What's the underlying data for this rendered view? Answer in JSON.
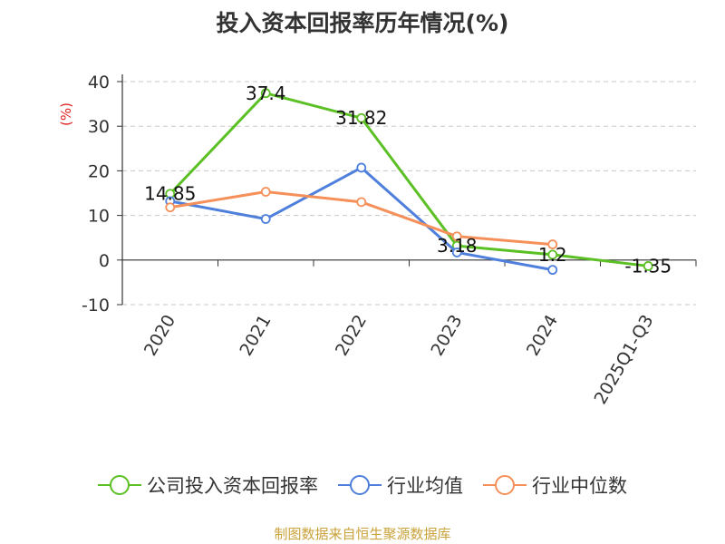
{
  "chart_data": {
    "type": "line",
    "title": "投入资本回报率历年情况(%)",
    "ylabel": "(%)",
    "xlabel": "",
    "categories": [
      "2020",
      "2021",
      "2022",
      "2023",
      "2024",
      "2025Q1-Q3"
    ],
    "ylim": [
      -10,
      40
    ],
    "yticks": [
      -10,
      0,
      10,
      20,
      30,
      40
    ],
    "grid": true,
    "legend_position": "bottom",
    "series": [
      {
        "name": "公司投入资本回报率",
        "color": "#5bc024",
        "values": [
          14.85,
          37.4,
          31.82,
          3.18,
          1.2,
          -1.35
        ],
        "labels": [
          "14.85",
          "37.4",
          "31.82",
          "3.18",
          "1.2",
          "-1.35"
        ]
      },
      {
        "name": "行业均值",
        "color": "#4e7fdc",
        "values": [
          13.2,
          9.2,
          20.7,
          1.7,
          -2.2,
          null
        ]
      },
      {
        "name": "行业中位数",
        "color": "#f5905a",
        "values": [
          11.8,
          15.3,
          13.0,
          5.3,
          3.5,
          null
        ]
      }
    ],
    "source": "制图数据来自恒生聚源数据库"
  }
}
